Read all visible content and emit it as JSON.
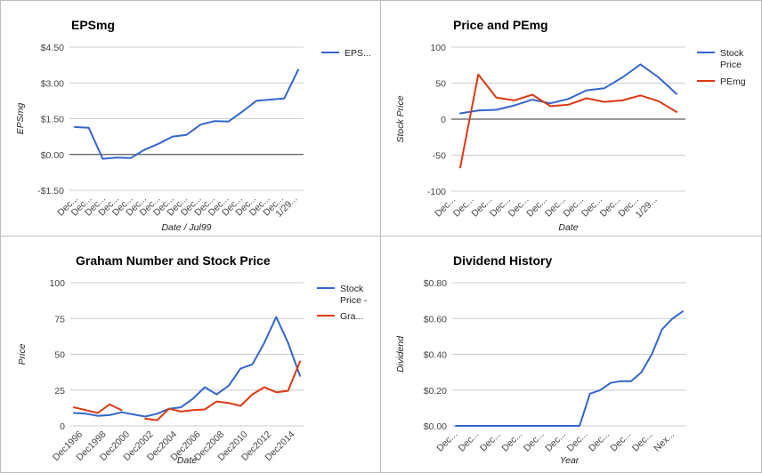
{
  "colors": {
    "blue": "#3366cc",
    "red": "#dc3912",
    "grid": "#cccccc",
    "zero": "#333333"
  },
  "chart_data": [
    {
      "type": "line",
      "title": "EPSmg",
      "xlabel": "Date / Jul99",
      "ylabel": "EPSmg",
      "ylim": [
        -1.5,
        4.5
      ],
      "yticks": [
        4.5,
        3,
        1.5,
        0,
        -1.5
      ],
      "yticklabels": [
        "$4.50",
        "$3.00",
        "$1.50",
        "$0.00",
        "-$1.50"
      ],
      "xticklabels": [
        "Dec...",
        "Dec...",
        "Dec...",
        "Dec...",
        "Dec...",
        "Dec...",
        "Dec...",
        "Dec...",
        "Dec...",
        "Dec...",
        "Dec...",
        "Dec...",
        "Dec...",
        "Dec...",
        "Dec...",
        "Dec...",
        "1/29..."
      ],
      "grid": true,
      "legend": "right",
      "series": [
        {
          "name": "EPS...",
          "color": "#3366cc",
          "values": [
            1.15,
            1.12,
            -0.18,
            -0.13,
            -0.15,
            0.2,
            0.45,
            0.75,
            0.82,
            1.25,
            1.4,
            1.38,
            1.8,
            2.25,
            2.3,
            2.35,
            3.55
          ]
        }
      ]
    },
    {
      "type": "line",
      "title": "Price and PEmg",
      "xlabel": "Date",
      "ylabel": "Stock Price",
      "ylim": [
        -100,
        100
      ],
      "yticks": [
        100,
        50,
        0,
        -50,
        -100
      ],
      "yticklabels": [
        "100",
        "50",
        "0",
        "-50",
        "-100"
      ],
      "xticklabels": [
        "Dec...",
        "Dec...",
        "Dec...",
        "Dec...",
        "Dec...",
        "Dec...",
        "Dec...",
        "Dec...",
        "Dec...",
        "Dec...",
        "Dec...",
        "1/29..."
      ],
      "grid": true,
      "legend": "right",
      "series": [
        {
          "name": "Stock Price",
          "color": "#3366cc",
          "values": [
            8,
            12,
            13,
            19,
            27,
            22,
            28,
            40,
            43,
            58,
            76,
            58,
            35
          ]
        },
        {
          "name": "PEmg",
          "color": "#dc3912",
          "values": [
            -67,
            62,
            30,
            26,
            34,
            18,
            20,
            29,
            24,
            26,
            33,
            25,
            10
          ]
        }
      ]
    },
    {
      "type": "line",
      "title": "Graham Number and Stock Price",
      "xlabel": "Date",
      "ylabel": "Price",
      "ylim": [
        0,
        100
      ],
      "yticks": [
        100,
        75,
        50,
        25,
        0
      ],
      "yticklabels": [
        "100",
        "75",
        "50",
        "25",
        "0"
      ],
      "xticklabels": [
        "Dec1996",
        "Dec1998",
        "Dec2000",
        "Dec2002",
        "Dec2004",
        "Dec2006",
        "Dec2008",
        "Dec2010",
        "Dec2012",
        "Dec2014"
      ],
      "grid": true,
      "legend": "right",
      "series": [
        {
          "name": "Stock Price -",
          "color": "#3366cc",
          "values": [
            9,
            8.5,
            7,
            7.5,
            9.5,
            8,
            6.5,
            8.5,
            12,
            13,
            19,
            27,
            22,
            28,
            40,
            43,
            58,
            76,
            58,
            35
          ]
        },
        {
          "name": "Gra...",
          "color": "#dc3912",
          "values": [
            13,
            11,
            9,
            15,
            11,
            null,
            5,
            4,
            12,
            10,
            11,
            11.5,
            17,
            16,
            14,
            22,
            27,
            23.5,
            24.5,
            45
          ]
        }
      ]
    },
    {
      "type": "line",
      "title": "Dividend History",
      "xlabel": "Year",
      "ylabel": "Dividend",
      "ylim": [
        0,
        0.8
      ],
      "yticks": [
        0.8,
        0.6,
        0.4,
        0.2,
        0
      ],
      "yticklabels": [
        "$0.80",
        "$0.60",
        "$0.40",
        "$0.20",
        "$0.00"
      ],
      "xticklabels": [
        "Dec...",
        "Dec...",
        "Dec...",
        "Dec...",
        "Dec...",
        "Dec...",
        "Dec...",
        "Dec...",
        "Dec...",
        "Dec...",
        "Nex..."
      ],
      "grid": true,
      "legend": "none",
      "series": [
        {
          "color": "#3366cc",
          "values": [
            0,
            0,
            0,
            0,
            0,
            0,
            0,
            0,
            0,
            0,
            0,
            0,
            0,
            0.18,
            0.2,
            0.24,
            0.25,
            0.25,
            0.3,
            0.4,
            0.54,
            0.6,
            0.64
          ]
        }
      ]
    }
  ]
}
